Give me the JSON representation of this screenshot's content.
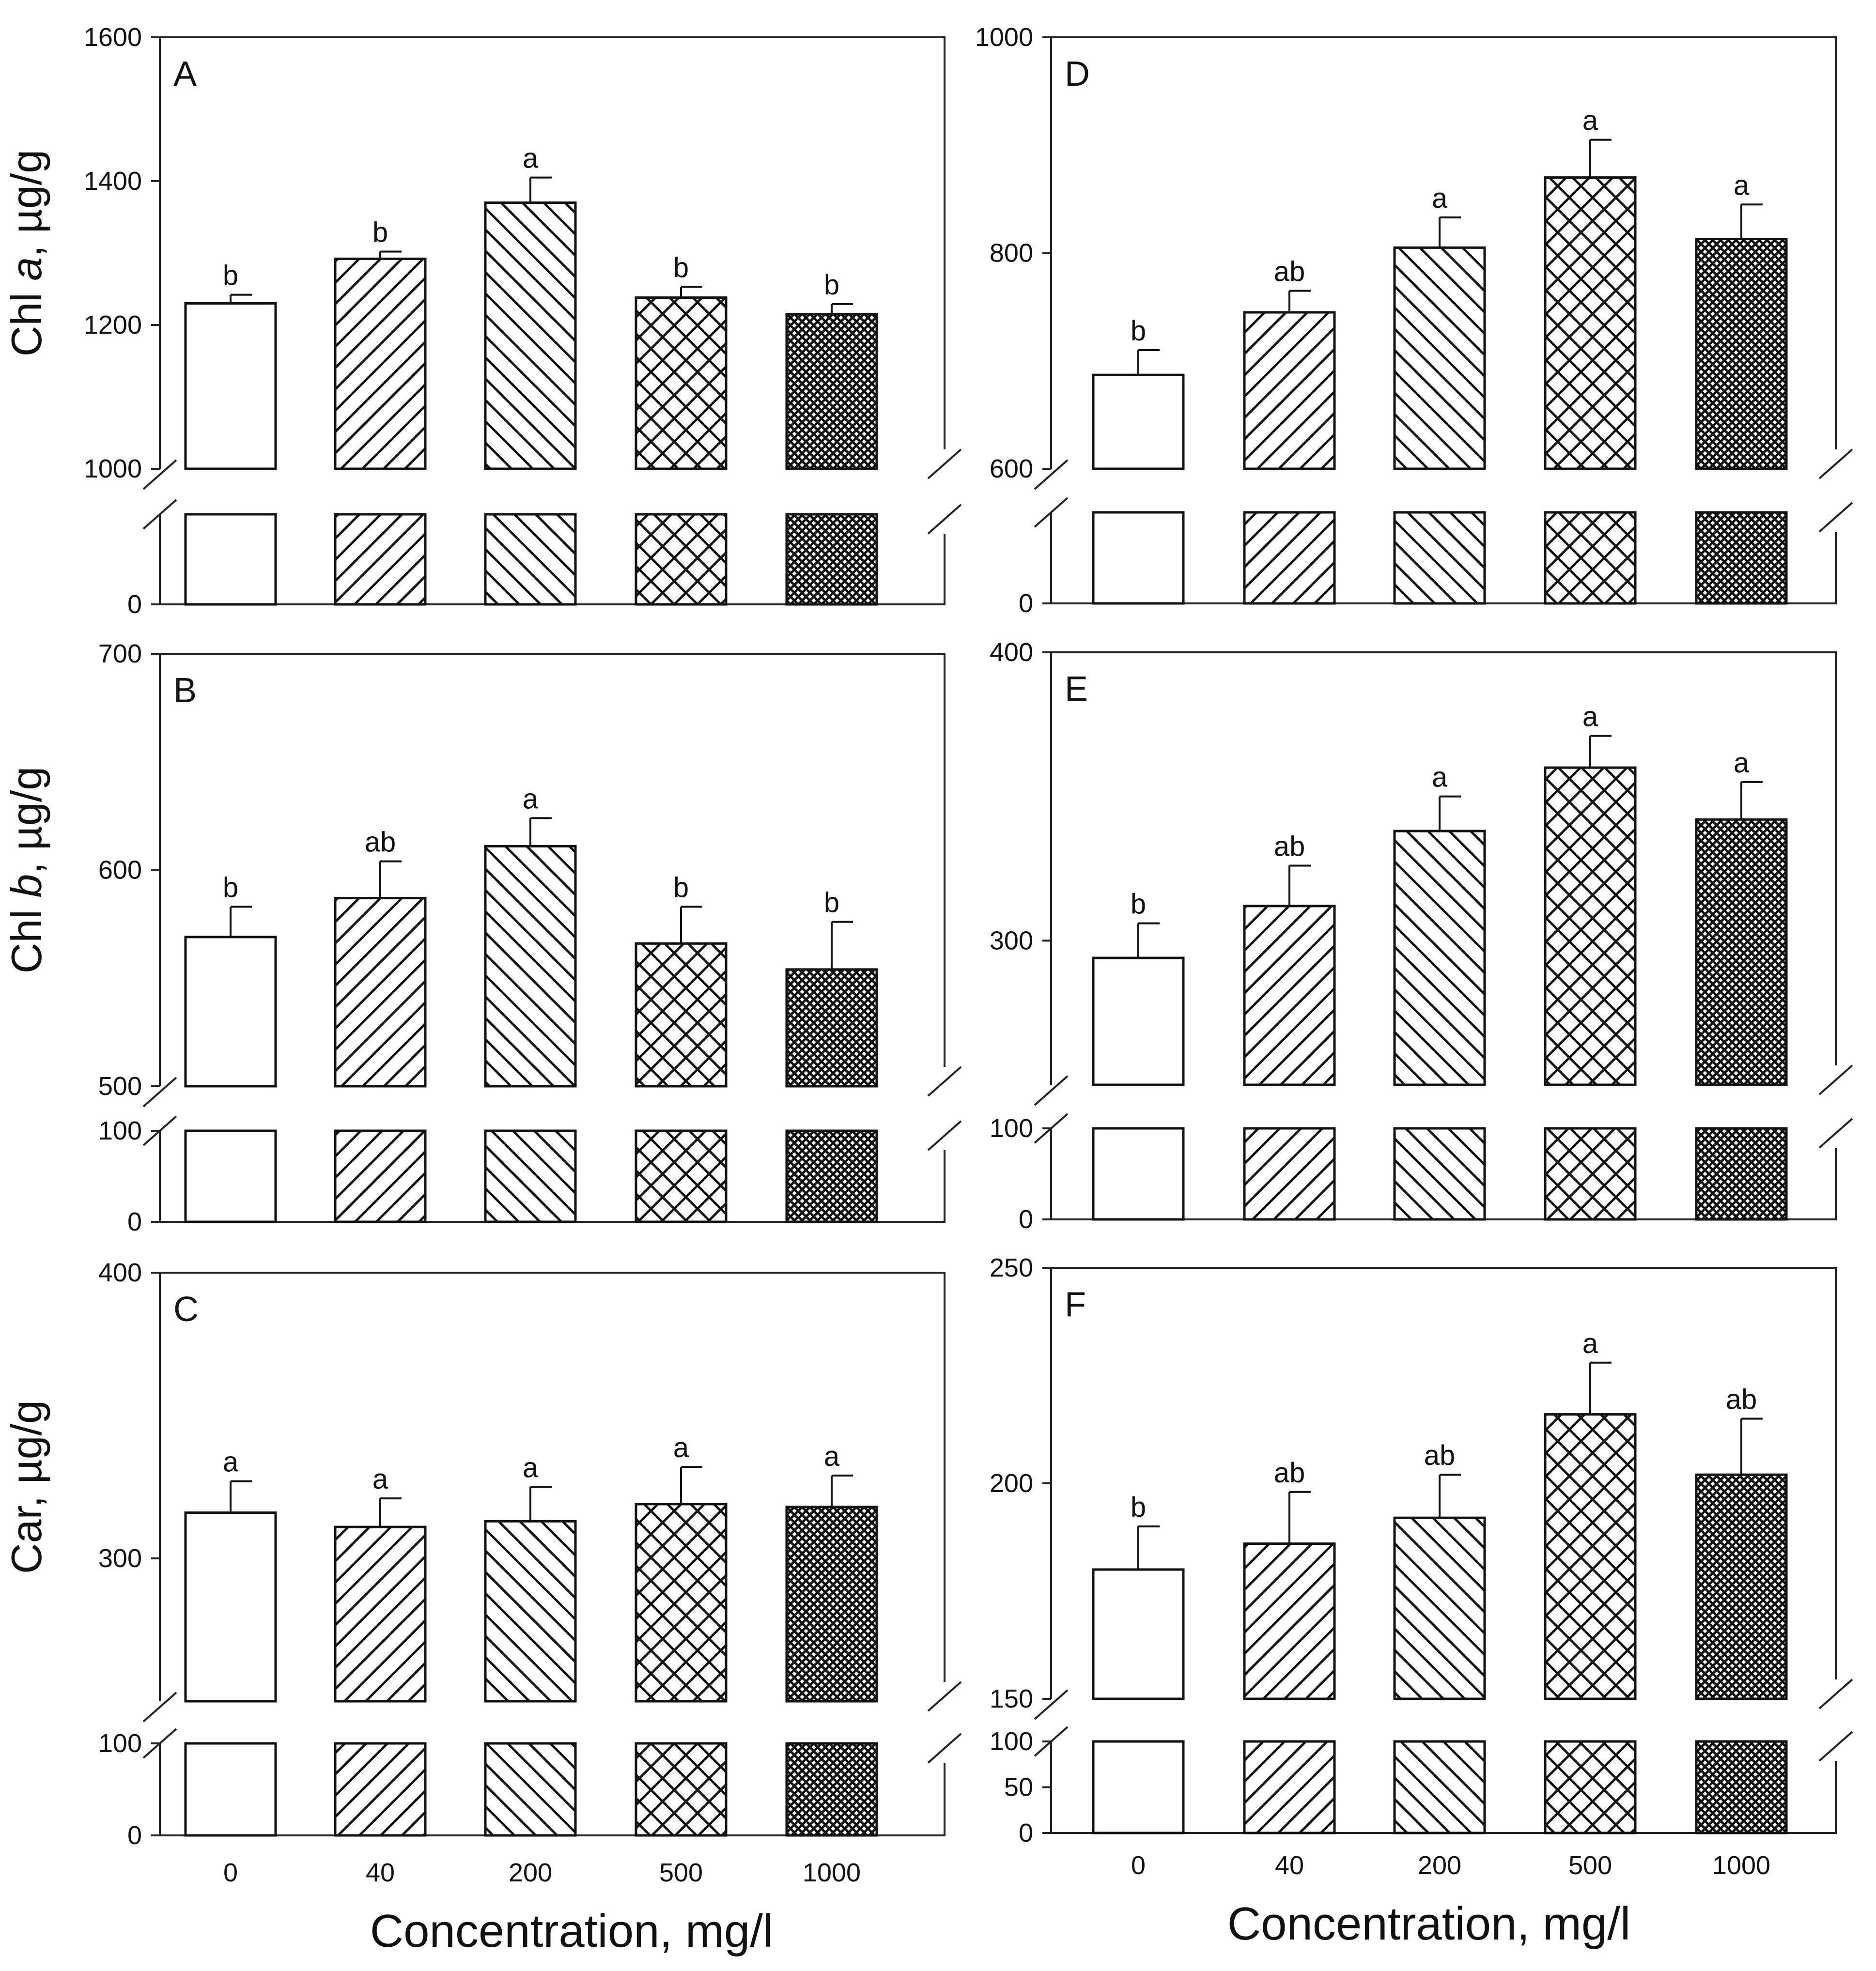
{
  "figure": {
    "x_axis_label": "Concentration, mg/l",
    "categories": [
      "0",
      "40",
      "200",
      "500",
      "1000"
    ],
    "category_patterns": [
      "blank",
      "diag-up",
      "diag-down",
      "crosshatch",
      "dense-crosshatch"
    ]
  },
  "chart_data": [
    {
      "panel": "A",
      "type": "bar",
      "ylabel_main": "Chl ",
      "ylabel_italic": "a",
      "ylabel_unit": ", µg/g",
      "categories": [
        "0",
        "40",
        "200",
        "500",
        "1000"
      ],
      "values": [
        1230,
        1292,
        1370,
        1238,
        1215
      ],
      "errors": [
        12,
        10,
        35,
        15,
        14
      ],
      "significance": [
        "b",
        "b",
        "a",
        "b",
        "b"
      ],
      "ylim_upper": [
        1000,
        1600
      ],
      "yticks_upper": [
        "1000",
        "1200",
        "1400",
        "1600"
      ],
      "ylim_lower": [
        0,
        100
      ],
      "yticks_lower": [
        "0"
      ]
    },
    {
      "panel": "B",
      "type": "bar",
      "ylabel_main": "Chl ",
      "ylabel_italic": "b",
      "ylabel_unit": ", µg/g",
      "categories": [
        "0",
        "40",
        "200",
        "500",
        "1000"
      ],
      "values": [
        569,
        587,
        611,
        566,
        554
      ],
      "errors": [
        14,
        17,
        13,
        17,
        22
      ],
      "significance": [
        "b",
        "ab",
        "a",
        "b",
        "b"
      ],
      "ylim_upper": [
        500,
        700
      ],
      "yticks_upper": [
        "500",
        "600",
        "700"
      ],
      "ylim_lower": [
        0,
        100
      ],
      "yticks_lower": [
        "0",
        "100"
      ]
    },
    {
      "panel": "C",
      "type": "bar",
      "ylabel_main": "Car, µg/g",
      "ylabel_italic": "",
      "ylabel_unit": "",
      "categories": [
        "0",
        "40",
        "200",
        "500",
        "1000"
      ],
      "values": [
        316,
        311,
        313,
        319,
        318
      ],
      "errors": [
        11,
        10,
        12,
        13,
        11
      ],
      "significance": [
        "a",
        "a",
        "a",
        "a",
        "a"
      ],
      "ylim_upper": [
        250,
        400
      ],
      "yticks_upper": [
        "300",
        "400"
      ],
      "ylim_lower": [
        0,
        100
      ],
      "yticks_lower": [
        "0",
        "100"
      ]
    },
    {
      "panel": "D",
      "type": "bar",
      "ylabel_main": "",
      "ylabel_italic": "",
      "ylabel_unit": "",
      "categories": [
        "0",
        "40",
        "200",
        "500",
        "1000"
      ],
      "values": [
        687,
        745,
        805,
        870,
        813
      ],
      "errors": [
        23,
        20,
        28,
        35,
        32
      ],
      "significance": [
        "b",
        "ab",
        "a",
        "a",
        "a"
      ],
      "ylim_upper": [
        600,
        1000
      ],
      "yticks_upper": [
        "600",
        "800",
        "1000"
      ],
      "ylim_lower": [
        0,
        100
      ],
      "yticks_lower": [
        "0"
      ]
    },
    {
      "panel": "E",
      "type": "bar",
      "ylabel_main": "",
      "ylabel_italic": "",
      "ylabel_unit": "",
      "categories": [
        "0",
        "40",
        "200",
        "500",
        "1000"
      ],
      "values": [
        294,
        312,
        338,
        360,
        342
      ],
      "errors": [
        12,
        14,
        12,
        11,
        13
      ],
      "significance": [
        "b",
        "ab",
        "a",
        "a",
        "a"
      ],
      "ylim_upper": [
        250,
        400
      ],
      "yticks_upper": [
        "300",
        "400"
      ],
      "ylim_lower": [
        0,
        100
      ],
      "yticks_lower": [
        "0",
        "100"
      ]
    },
    {
      "panel": "F",
      "type": "bar",
      "ylabel_main": "",
      "ylabel_italic": "",
      "ylabel_unit": "",
      "categories": [
        "0",
        "40",
        "200",
        "500",
        "1000"
      ],
      "values": [
        180,
        186,
        192,
        216,
        202
      ],
      "errors": [
        10,
        12,
        10,
        12,
        13
      ],
      "significance": [
        "b",
        "ab",
        "ab",
        "a",
        "ab"
      ],
      "ylim_upper": [
        150,
        250
      ],
      "yticks_upper": [
        "150",
        "200",
        "250"
      ],
      "ylim_lower": [
        0,
        100
      ],
      "yticks_lower": [
        "0",
        "50",
        "100"
      ]
    }
  ]
}
